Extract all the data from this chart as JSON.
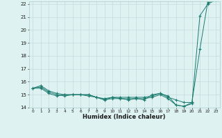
{
  "x": [
    0,
    1,
    2,
    3,
    4,
    5,
    6,
    7,
    8,
    9,
    10,
    11,
    12,
    13,
    14,
    15,
    16,
    17,
    18,
    19,
    20,
    21,
    22,
    23
  ],
  "line1": [
    15.5,
    15.7,
    15.3,
    15.1,
    15.0,
    15.0,
    15.0,
    14.9,
    14.8,
    14.6,
    14.8,
    14.8,
    14.8,
    14.8,
    14.8,
    14.9,
    15.1,
    14.9,
    14.2,
    14.1,
    14.4,
    18.5,
    22.2,
    22.3
  ],
  "line2": [
    15.5,
    15.6,
    15.2,
    15.0,
    14.9,
    15.0,
    15.0,
    15.0,
    14.8,
    14.6,
    14.7,
    14.7,
    14.7,
    14.7,
    14.7,
    14.8,
    15.0,
    14.7,
    14.2,
    14.1,
    14.3,
    21.1,
    22.0,
    22.3
  ],
  "line3": [
    15.5,
    15.5,
    15.1,
    14.9,
    15.0,
    15.0,
    15.0,
    15.0,
    14.8,
    14.7,
    14.8,
    14.7,
    14.6,
    14.7,
    14.6,
    15.0,
    15.1,
    14.8,
    14.6,
    14.4,
    14.4,
    null,
    22.1,
    22.3
  ],
  "background_color": "#dff2f2",
  "grid_color": "#c4dcdc",
  "line_color": "#1a7a6e",
  "xlabel": "Humidex (Indice chaleur)",
  "ylim_min": 14,
  "ylim_max": 22,
  "xlim_min": -0.5,
  "xlim_max": 23.5,
  "yticks": [
    14,
    15,
    16,
    17,
    18,
    19,
    20,
    21,
    22
  ],
  "xtick_labels": [
    "0",
    "1",
    "2",
    "3",
    "4",
    "5",
    "6",
    "7",
    "8",
    "9",
    "10",
    "11",
    "12",
    "13",
    "14",
    "15",
    "16",
    "17",
    "18",
    "19",
    "20",
    "21",
    "22",
    "23"
  ]
}
